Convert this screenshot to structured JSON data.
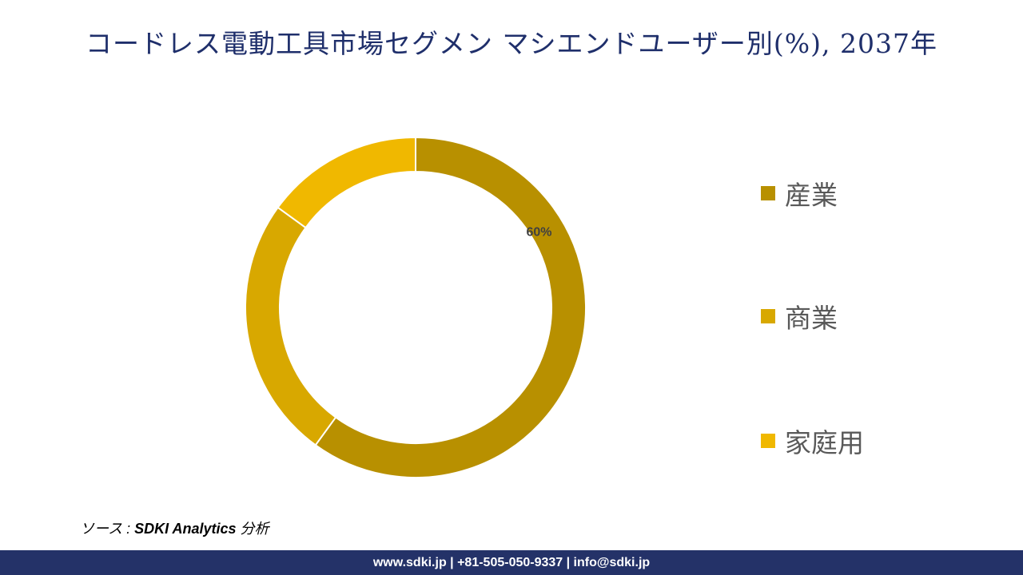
{
  "title": "コードレス電動工具市場セグメン マシエンドユーザー別(%), 2037年",
  "chart_data": {
    "type": "pie",
    "donut": true,
    "categories": [
      "産業",
      "商業",
      "家庭用"
    ],
    "values": [
      60,
      25,
      15
    ],
    "colors": [
      "#b89000",
      "#d8a800",
      "#f0b800"
    ],
    "data_labels": [
      "60%",
      "",
      ""
    ],
    "legend_position": "right"
  },
  "source": {
    "prefix": "ソース : ",
    "name": "SDKI Analytics",
    "suffix": " 分析"
  },
  "footer": "www.sdki.jp | +81-505-050-9337 | info@sdki.jp"
}
